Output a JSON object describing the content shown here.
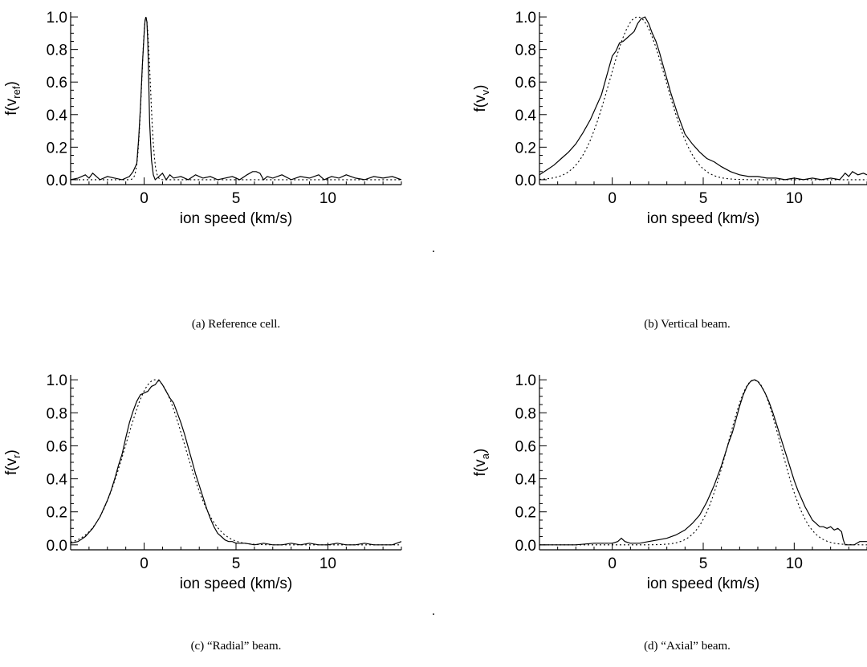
{
  "separator_dot": ".",
  "chart_data": [
    {
      "type": "line",
      "panel": "a",
      "caption": "(a) Reference cell.",
      "xlabel": "ion speed (km/s)",
      "ylabel": {
        "base": "f(v",
        "sub": "ref",
        "close": ")"
      },
      "xlim": [
        -4,
        14
      ],
      "ylim": [
        -0.03,
        1.03
      ],
      "xticks": [
        0,
        5,
        10
      ],
      "yticks": [
        "0.0",
        "0.2",
        "0.4",
        "0.6",
        "0.8",
        "1.0"
      ],
      "series": [
        {
          "style": "solid",
          "x": [
            -4,
            -3.6,
            -3.2,
            -3.0,
            -2.8,
            -2.4,
            -2.0,
            -1.6,
            -1.2,
            -0.8,
            -0.6,
            -0.4,
            -0.3,
            -0.2,
            -0.1,
            0.0,
            0.05,
            0.1,
            0.15,
            0.2,
            0.25,
            0.3,
            0.4,
            0.5,
            0.6,
            0.8,
            1.0,
            1.2,
            1.4,
            1.6,
            2.0,
            2.4,
            2.8,
            3.2,
            3.6,
            4.0,
            4.4,
            4.8,
            5.2,
            5.6,
            5.9,
            6.1,
            6.3,
            6.5,
            6.7,
            7.0,
            7.5,
            8.0,
            8.5,
            9.0,
            9.5,
            9.8,
            10.2,
            10.6,
            11.0,
            11.5,
            12.0,
            12.5,
            13.0,
            13.5,
            14.0
          ],
          "y": [
            0.0,
            0.01,
            0.03,
            0.01,
            0.04,
            0.0,
            0.02,
            0.01,
            0.0,
            0.02,
            0.05,
            0.1,
            0.25,
            0.45,
            0.7,
            0.9,
            0.98,
            1.0,
            0.97,
            0.85,
            0.6,
            0.35,
            0.12,
            0.03,
            0.0,
            0.02,
            0.04,
            0.0,
            0.03,
            0.01,
            0.02,
            0.0,
            0.03,
            0.01,
            0.02,
            0.0,
            0.01,
            0.02,
            0.0,
            0.03,
            0.05,
            0.05,
            0.04,
            0.0,
            0.02,
            0.01,
            0.03,
            0.0,
            0.02,
            0.01,
            0.03,
            0.0,
            0.02,
            0.01,
            0.03,
            0.01,
            0.0,
            0.02,
            0.01,
            0.02,
            0.0
          ]
        },
        {
          "style": "dotted",
          "gaussian": {
            "mu": 0.1,
            "sigma": 0.23
          }
        }
      ]
    },
    {
      "type": "line",
      "panel": "b",
      "caption": "(b) Vertical beam.",
      "xlabel": "ion speed (km/s)",
      "ylabel": {
        "base": "f(v",
        "sub": "v",
        "close": ")"
      },
      "xlim": [
        -4,
        14
      ],
      "ylim": [
        -0.03,
        1.03
      ],
      "xticks": [
        0,
        5,
        10
      ],
      "yticks": [
        "0.0",
        "0.2",
        "0.4",
        "0.6",
        "0.8",
        "1.0"
      ],
      "series": [
        {
          "style": "solid",
          "x": [
            -4,
            -3.6,
            -3.2,
            -2.8,
            -2.4,
            -2.0,
            -1.6,
            -1.2,
            -0.8,
            -0.6,
            -0.4,
            -0.2,
            0.0,
            0.2,
            0.4,
            0.6,
            0.8,
            1.0,
            1.2,
            1.4,
            1.6,
            1.8,
            2.0,
            2.2,
            2.4,
            2.6,
            2.8,
            3.0,
            3.2,
            3.4,
            3.6,
            3.8,
            4.0,
            4.4,
            4.8,
            5.2,
            5.6,
            6.0,
            6.5,
            7.0,
            7.5,
            8.0,
            8.5,
            9.0,
            9.5,
            10.0,
            10.5,
            11.0,
            11.5,
            12.0,
            12.5,
            12.8,
            13.0,
            13.2,
            13.5,
            13.8,
            14.0
          ],
          "y": [
            0.03,
            0.06,
            0.09,
            0.13,
            0.17,
            0.22,
            0.29,
            0.37,
            0.47,
            0.52,
            0.6,
            0.68,
            0.76,
            0.79,
            0.84,
            0.85,
            0.87,
            0.89,
            0.91,
            0.96,
            0.99,
            1.0,
            0.96,
            0.9,
            0.85,
            0.78,
            0.7,
            0.62,
            0.54,
            0.47,
            0.4,
            0.34,
            0.28,
            0.22,
            0.17,
            0.13,
            0.11,
            0.08,
            0.05,
            0.03,
            0.02,
            0.02,
            0.01,
            0.01,
            0.0,
            0.01,
            0.0,
            0.01,
            0.0,
            0.01,
            0.0,
            0.04,
            0.02,
            0.05,
            0.03,
            0.04,
            0.03
          ]
        },
        {
          "style": "dotted",
          "gaussian": {
            "mu": 1.4,
            "sigma": 1.55
          }
        }
      ]
    },
    {
      "type": "line",
      "panel": "c",
      "caption": "(c) “Radial” beam.",
      "xlabel": "ion speed (km/s)",
      "ylabel": {
        "base": "f(v",
        "sub": "r",
        "close": ")"
      },
      "xlim": [
        -4,
        14
      ],
      "ylim": [
        -0.03,
        1.03
      ],
      "xticks": [
        0,
        5,
        10
      ],
      "yticks": [
        "0.0",
        "0.2",
        "0.4",
        "0.6",
        "0.8",
        "1.0"
      ],
      "series": [
        {
          "style": "solid",
          "x": [
            -4,
            -3.6,
            -3.2,
            -2.8,
            -2.4,
            -2.0,
            -1.8,
            -1.6,
            -1.4,
            -1.2,
            -1.0,
            -0.8,
            -0.6,
            -0.4,
            -0.2,
            0.0,
            0.2,
            0.4,
            0.6,
            0.8,
            1.0,
            1.2,
            1.4,
            1.6,
            1.8,
            2.0,
            2.2,
            2.4,
            2.6,
            2.8,
            3.0,
            3.2,
            3.4,
            3.6,
            3.8,
            4.0,
            4.2,
            4.4,
            4.6,
            4.8,
            5.0,
            5.5,
            6.0,
            6.5,
            7.0,
            7.5,
            8.0,
            8.5,
            9.0,
            9.5,
            10.0,
            10.5,
            11.0,
            11.5,
            12.0,
            12.5,
            13.0,
            13.5,
            14.0
          ],
          "y": [
            0.01,
            0.02,
            0.05,
            0.1,
            0.17,
            0.27,
            0.33,
            0.4,
            0.48,
            0.55,
            0.65,
            0.74,
            0.81,
            0.87,
            0.91,
            0.92,
            0.93,
            0.96,
            0.97,
            1.0,
            0.97,
            0.93,
            0.89,
            0.86,
            0.8,
            0.74,
            0.67,
            0.59,
            0.51,
            0.43,
            0.36,
            0.29,
            0.22,
            0.16,
            0.11,
            0.07,
            0.05,
            0.03,
            0.02,
            0.02,
            0.01,
            0.01,
            0.0,
            0.01,
            0.0,
            0.0,
            0.01,
            0.0,
            0.01,
            0.0,
            0.0,
            0.01,
            0.0,
            0.0,
            0.01,
            0.0,
            0.0,
            0.0,
            0.02
          ]
        },
        {
          "style": "dotted",
          "gaussian": {
            "mu": 0.6,
            "sigma": 1.6
          }
        }
      ]
    },
    {
      "type": "line",
      "panel": "d",
      "caption": "(d) “Axial” beam.",
      "xlabel": "ion speed (km/s)",
      "ylabel": {
        "base": "f(v",
        "sub": "a",
        "close": ")"
      },
      "xlim": [
        -4,
        14
      ],
      "ylim": [
        -0.03,
        1.03
      ],
      "xticks": [
        0,
        5,
        10
      ],
      "yticks": [
        "0.0",
        "0.2",
        "0.4",
        "0.6",
        "0.8",
        "1.0"
      ],
      "series": [
        {
          "style": "solid",
          "x": [
            -4,
            -3.0,
            -2.0,
            -1.0,
            0.0,
            0.3,
            0.5,
            0.7,
            1.0,
            1.5,
            2.0,
            2.5,
            3.0,
            3.5,
            4.0,
            4.4,
            4.8,
            5.2,
            5.6,
            6.0,
            6.2,
            6.4,
            6.6,
            6.8,
            7.0,
            7.2,
            7.4,
            7.6,
            7.8,
            8.0,
            8.2,
            8.4,
            8.6,
            8.8,
            9.0,
            9.2,
            9.4,
            9.6,
            9.8,
            10.0,
            10.2,
            10.4,
            10.6,
            10.8,
            11.0,
            11.2,
            11.4,
            11.6,
            11.8,
            12.0,
            12.2,
            12.4,
            12.6,
            12.7,
            12.8,
            13.0,
            13.3,
            13.6,
            14.0
          ],
          "y": [
            0.0,
            0.0,
            0.0,
            0.01,
            0.01,
            0.02,
            0.04,
            0.02,
            0.01,
            0.01,
            0.02,
            0.03,
            0.04,
            0.06,
            0.09,
            0.13,
            0.18,
            0.26,
            0.36,
            0.48,
            0.55,
            0.62,
            0.68,
            0.76,
            0.84,
            0.91,
            0.96,
            0.99,
            1.0,
            0.99,
            0.96,
            0.92,
            0.87,
            0.81,
            0.74,
            0.67,
            0.6,
            0.53,
            0.46,
            0.39,
            0.33,
            0.28,
            0.23,
            0.19,
            0.15,
            0.13,
            0.11,
            0.11,
            0.1,
            0.11,
            0.09,
            0.1,
            0.08,
            0.03,
            0.0,
            0.0,
            0.0,
            0.02,
            0.02
          ]
        },
        {
          "style": "dotted",
          "gaussian": {
            "mu": 7.8,
            "sigma": 1.45
          }
        }
      ]
    }
  ]
}
